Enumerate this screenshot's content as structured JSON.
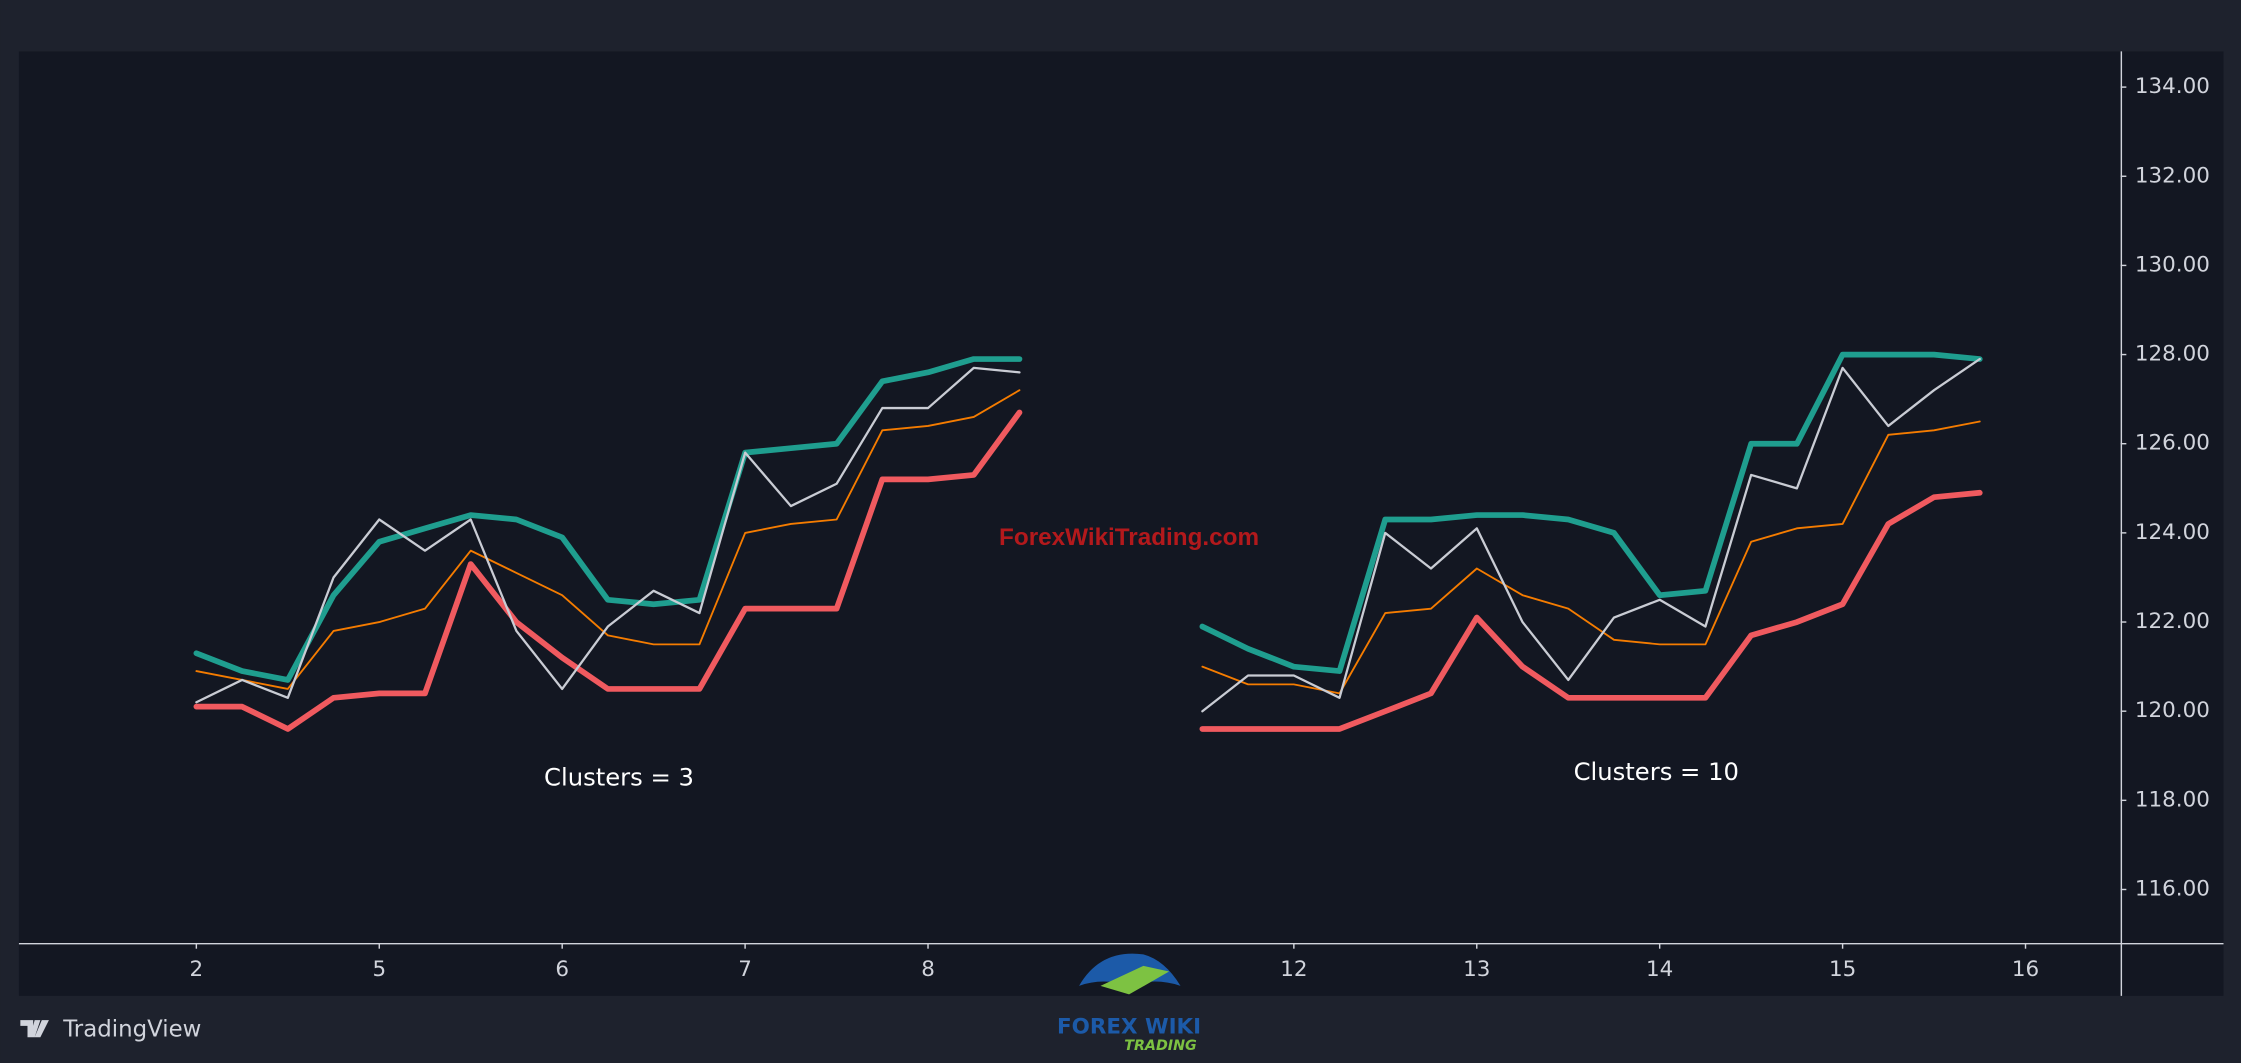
{
  "chart_data": {
    "type": "line",
    "x": [
      0,
      0.25,
      0.5,
      0.75,
      1,
      1.25,
      1.5,
      1.75,
      2,
      2.25,
      2.5,
      2.75,
      3,
      3.25,
      3.5,
      3.75,
      4,
      4.25,
      4.5,
      5,
      5.5,
      5.75,
      6,
      6.25,
      6.5,
      6.75,
      7,
      7.25,
      7.5,
      7.75,
      8,
      8.25,
      8.5,
      8.75,
      9,
      9.25,
      9.5,
      9.75
    ],
    "series": [
      {
        "color": "#1f9e8f",
        "width": 4,
        "values": [
          121.3,
          120.9,
          120.7,
          122.6,
          123.8,
          124.1,
          124.4,
          124.3,
          123.9,
          122.5,
          122.4,
          122.5,
          125.8,
          125.9,
          126.0,
          127.4,
          127.6,
          127.9,
          127.9,
          null,
          121.9,
          121.4,
          121.0,
          120.9,
          124.3,
          124.3,
          124.4,
          124.4,
          124.3,
          124.0,
          122.6,
          122.7,
          126.0,
          126.0,
          128.0,
          128.0,
          128.0,
          127.9
        ]
      },
      {
        "color": "#f05a5f",
        "width": 4,
        "values": [
          120.1,
          120.1,
          119.6,
          120.3,
          120.4,
          120.4,
          123.3,
          122.0,
          121.2,
          120.5,
          120.5,
          120.5,
          122.3,
          122.3,
          122.3,
          125.2,
          125.2,
          125.3,
          126.7,
          null,
          119.6,
          119.6,
          119.6,
          119.6,
          120.0,
          120.4,
          122.1,
          121.0,
          120.3,
          120.3,
          120.3,
          120.3,
          121.7,
          122.0,
          122.4,
          124.2,
          124.8,
          124.9
        ]
      },
      {
        "color": "#f57c00",
        "width": 1.3,
        "values": [
          120.9,
          120.7,
          120.5,
          121.8,
          122.0,
          122.3,
          123.6,
          123.1,
          122.6,
          121.7,
          121.5,
          121.5,
          124.0,
          124.2,
          124.3,
          126.3,
          126.4,
          126.6,
          127.2,
          null,
          121.0,
          120.6,
          120.6,
          120.4,
          122.2,
          122.3,
          123.2,
          122.6,
          122.3,
          121.6,
          121.5,
          121.5,
          123.8,
          124.1,
          124.2,
          126.2,
          126.3,
          126.5
        ]
      },
      {
        "color": "#c9ccd4",
        "width": 1.6,
        "values": [
          120.2,
          120.7,
          120.3,
          123.0,
          124.3,
          123.6,
          124.3,
          121.8,
          120.5,
          121.9,
          122.7,
          122.2,
          125.8,
          124.6,
          125.1,
          126.8,
          126.8,
          127.7,
          127.6,
          null,
          120.0,
          120.8,
          120.8,
          120.3,
          124.0,
          123.2,
          124.1,
          122.0,
          120.7,
          122.1,
          122.5,
          121.9,
          125.3,
          125.0,
          127.7,
          126.4,
          127.2,
          127.9
        ]
      }
    ],
    "xlim": [
      -0.97,
      10.52
    ],
    "xticks": [
      {
        "value": 0,
        "label": "2"
      },
      {
        "value": 1,
        "label": "5"
      },
      {
        "value": 2,
        "label": "6"
      },
      {
        "value": 3,
        "label": "7"
      },
      {
        "value": 4,
        "label": "8"
      },
      {
        "value": 6,
        "label": "12"
      },
      {
        "value": 7,
        "label": "13"
      },
      {
        "value": 8,
        "label": "14"
      },
      {
        "value": 9,
        "label": "15"
      },
      {
        "value": 10,
        "label": "16"
      }
    ],
    "ylim": [
      114.8,
      134.8
    ],
    "yticks": [
      {
        "value": 116,
        "label": "116.00"
      },
      {
        "value": 118,
        "label": "118.00"
      },
      {
        "value": 120,
        "label": "120.00"
      },
      {
        "value": 122,
        "label": "122.00"
      },
      {
        "value": 124,
        "label": "124.00"
      },
      {
        "value": 126,
        "label": "126.00"
      },
      {
        "value": 128,
        "label": "128.00"
      },
      {
        "value": 130,
        "label": "130.00"
      },
      {
        "value": 132,
        "label": "132.00"
      },
      {
        "value": 134,
        "label": "134.00"
      }
    ],
    "annotations": [
      "Clusters = 3",
      "Clusters = 10"
    ],
    "watermark": "ForexWikiTrading.com",
    "logo": [
      "FOREX WIKI",
      "TRADING"
    ],
    "brand": "TradingView"
  }
}
